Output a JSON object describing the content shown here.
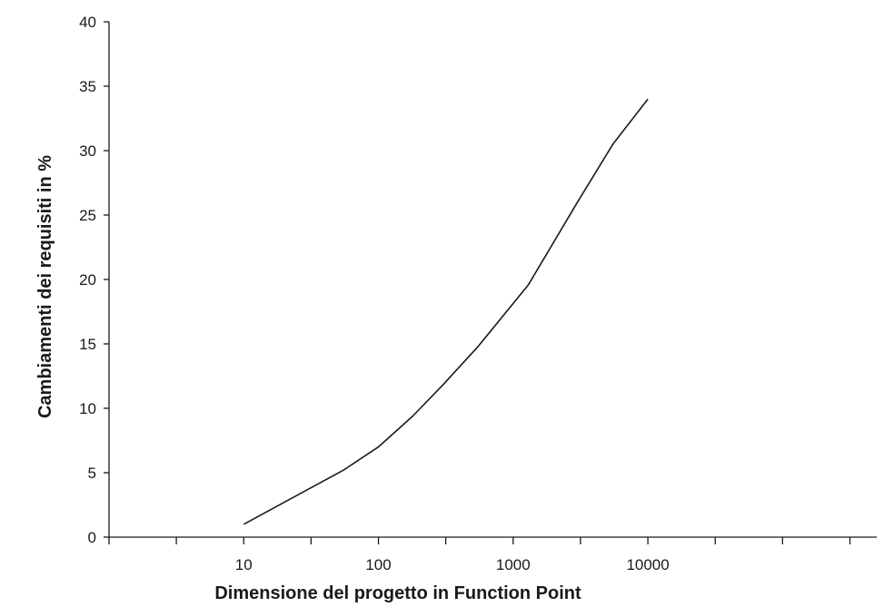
{
  "chart_data": {
    "type": "line",
    "title": "",
    "xlabel": "Dimensione del progetto in Function Point",
    "ylabel": "Cambiamenti dei requisiti in %",
    "x_scale": "log",
    "x_tick_labels": [
      "10",
      "100",
      "1000",
      "10000"
    ],
    "x_tick_values": [
      10,
      100,
      1000,
      10000
    ],
    "x_minor_ticks": [
      1,
      3.16,
      10,
      31.6,
      100,
      316,
      1000,
      3162,
      10000,
      31623,
      100000,
      316228
    ],
    "xlim": [
      1,
      500000
    ],
    "y_tick_labels": [
      "0",
      "5",
      "10",
      "15",
      "20",
      "25",
      "30",
      "35",
      "40"
    ],
    "ylim": [
      0,
      40
    ],
    "grid": false,
    "series": [
      {
        "x": [
          10,
          55,
          100,
          180,
          300,
          550,
          1300,
          3000,
          5500,
          10000
        ],
        "y": [
          1.0,
          5.2,
          7.0,
          9.4,
          11.8,
          14.8,
          19.6,
          26.0,
          30.5,
          34.0
        ]
      }
    ]
  }
}
